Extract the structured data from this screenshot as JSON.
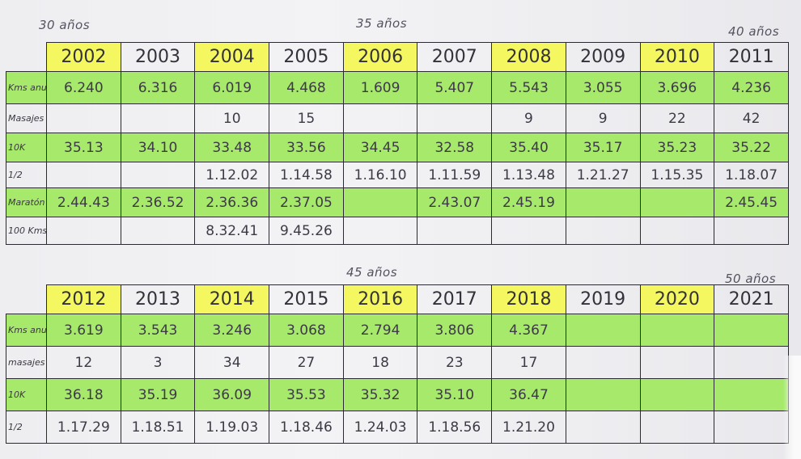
{
  "notes": {
    "age_30": "30 años",
    "age_35": "35 años",
    "age_40": "40 años",
    "age_45": "45 años",
    "age_50": "50 años"
  },
  "highlight_colors": {
    "year": "#f4f760",
    "row": "#a6e96b"
  },
  "table1": {
    "years": [
      "2002",
      "2003",
      "2004",
      "2005",
      "2006",
      "2007",
      "2008",
      "2009",
      "2010",
      "2011"
    ],
    "year_highlight": [
      true,
      false,
      true,
      false,
      true,
      false,
      true,
      false,
      true,
      false
    ],
    "rows": [
      {
        "label": "Kms anuales",
        "highlight": true,
        "cells": [
          "6.240",
          "6.316",
          "6.019",
          "4.468",
          "1.609",
          "5.407",
          "5.543",
          "3.055",
          "3.696",
          "4.236"
        ]
      },
      {
        "label": "Masajes",
        "highlight": false,
        "cells": [
          "",
          "",
          "10",
          "15",
          "",
          "",
          "9",
          "9",
          "22",
          "42"
        ]
      },
      {
        "label": "10K",
        "highlight": true,
        "cells": [
          "35.13",
          "34.10",
          "33.48",
          "33.56",
          "34.45",
          "32.58",
          "35.40",
          "35.17",
          "35.23",
          "35.22"
        ]
      },
      {
        "label": "1/2",
        "highlight": false,
        "cells": [
          "",
          "",
          "1.12.02",
          "1.14.58",
          "1.16.10",
          "1.11.59",
          "1.13.48",
          "1.21.27",
          "1.15.35",
          "1.18.07"
        ]
      },
      {
        "label": "Maratón",
        "highlight": true,
        "cells": [
          "2.44.43",
          "2.36.52",
          "2.36.36",
          "2.37.05",
          "",
          "2.43.07",
          "2.45.19",
          "",
          "",
          "2.45.45"
        ]
      },
      {
        "label": "100 Kms",
        "highlight": false,
        "cells": [
          "",
          "",
          "8.32.41",
          "9.45.26",
          "",
          "",
          "",
          "",
          "",
          ""
        ]
      }
    ]
  },
  "table2": {
    "years": [
      "2012",
      "2013",
      "2014",
      "2015",
      "2016",
      "2017",
      "2018",
      "2019",
      "2020",
      "2021"
    ],
    "year_highlight": [
      true,
      false,
      true,
      false,
      true,
      false,
      true,
      false,
      true,
      false
    ],
    "rows": [
      {
        "label": "Kms anuales",
        "highlight": true,
        "cells": [
          "3.619",
          "3.543",
          "3.246",
          "3.068",
          "2.794",
          "3.806",
          "4.367",
          "",
          "",
          ""
        ]
      },
      {
        "label": "masajes",
        "highlight": false,
        "cells": [
          "12",
          "3",
          "34",
          "27",
          "18",
          "23",
          "17",
          "",
          "",
          ""
        ]
      },
      {
        "label": "10K",
        "highlight": true,
        "cells": [
          "36.18",
          "35.19",
          "36.09",
          "35.53",
          "35.32",
          "35.10",
          "36.47",
          "",
          "",
          ""
        ]
      },
      {
        "label": "1/2",
        "highlight": false,
        "cells": [
          "1.17.29",
          "1.18.51",
          "1.19.03",
          "1.18.46",
          "1.24.03",
          "1.18.56",
          "1.21.20",
          "",
          "",
          ""
        ]
      }
    ]
  }
}
